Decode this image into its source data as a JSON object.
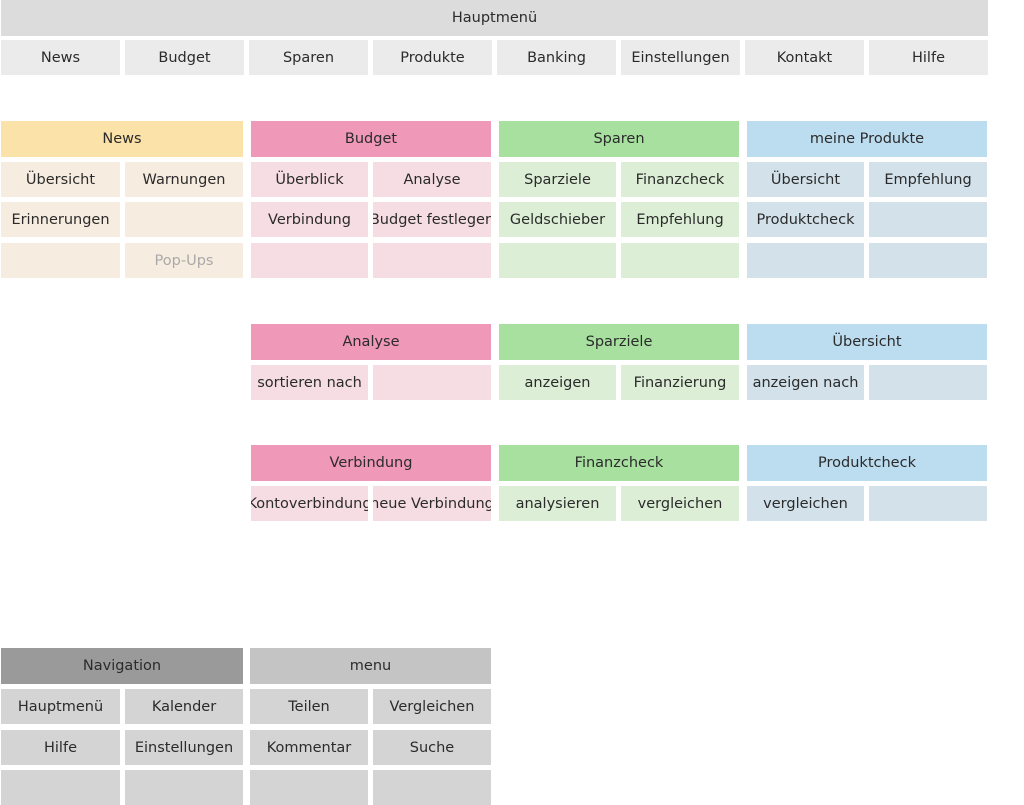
{
  "main_menu": {
    "title": "Hauptmenü",
    "items": [
      "News",
      "Budget",
      "Sparen",
      "Produkte",
      "Banking",
      "Einstellungen",
      "Kontakt",
      "Hilfe"
    ]
  },
  "sections": {
    "news": {
      "title": "News",
      "items": [
        "Übersicht",
        "Warnungen",
        "Erinnerungen",
        "",
        "",
        "Pop-Ups"
      ]
    },
    "budget": {
      "title": "Budget",
      "items": [
        "Überblick",
        "Analyse",
        "Verbindung",
        "Budget festlegen",
        "",
        ""
      ]
    },
    "sparen": {
      "title": "Sparen",
      "items": [
        "Sparziele",
        "Finanzcheck",
        "Geldschieber",
        "Empfehlung",
        "",
        ""
      ]
    },
    "produkte": {
      "title": "meine Produkte",
      "items": [
        "Übersicht",
        "Empfehlung",
        "Produktcheck",
        "",
        "",
        ""
      ]
    },
    "analyse": {
      "title": "Analyse",
      "items": [
        "sortieren nach",
        ""
      ]
    },
    "sparziele": {
      "title": "Sparziele",
      "items": [
        "anzeigen",
        "Finanzierung"
      ]
    },
    "uebersicht": {
      "title": "Übersicht",
      "items": [
        "anzeigen nach",
        ""
      ]
    },
    "verbindung": {
      "title": "Verbindung",
      "items": [
        "Kontoverbindung",
        "neue Verbindung"
      ]
    },
    "finanzcheck": {
      "title": "Finanzcheck",
      "items": [
        "analysieren",
        "vergleichen"
      ]
    },
    "produktcheck": {
      "title": "Produktcheck",
      "items": [
        "vergleichen",
        ""
      ]
    },
    "navigation": {
      "title": "Navigation",
      "items": [
        "Hauptmenü",
        "Kalender",
        "Hilfe",
        "Einstellungen",
        "",
        ""
      ]
    },
    "menu": {
      "title": "menu",
      "items": [
        "Teilen",
        "Vergleichen",
        "Kommentar",
        "Suche",
        "",
        ""
      ]
    }
  },
  "colors": {
    "news": "#fbe2a8",
    "budget": "#ef98b7",
    "sparen": "#a8e0a0",
    "produkte": "#bcdcf0",
    "navigation": "#9a9a9a",
    "menu": "#c4c4c4"
  }
}
